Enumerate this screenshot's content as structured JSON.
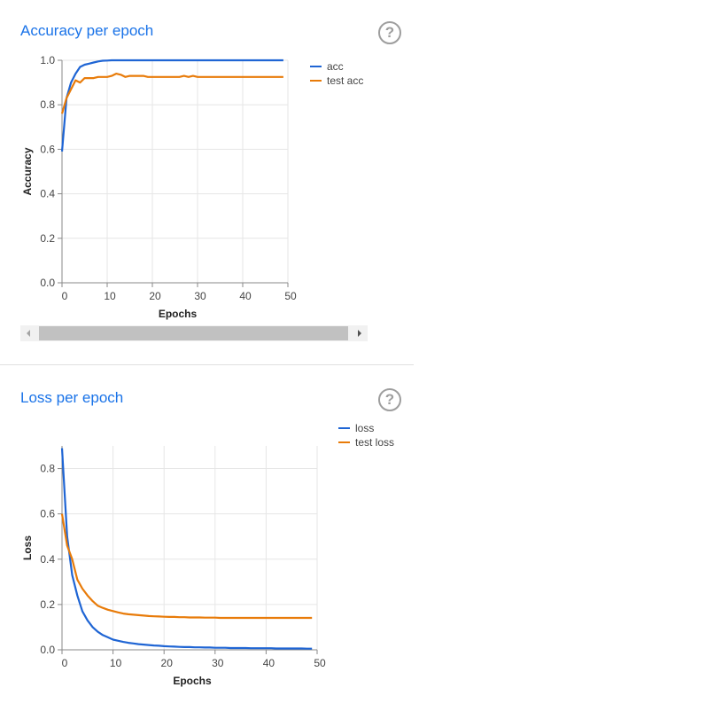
{
  "cards": {
    "accuracy": {
      "title": "Accuracy per epoch",
      "help": "?"
    },
    "loss": {
      "title": "Loss per epoch",
      "help": "?"
    }
  },
  "colors": {
    "series1": "#1f65d4",
    "series2": "#e87b09",
    "title": "#1a73e8",
    "grid": "#e6e6e6",
    "axis": "#888888"
  },
  "chart_data": [
    {
      "type": "line",
      "title": "Accuracy per epoch",
      "xlabel": "Epochs",
      "ylabel": "Accuracy",
      "xlim": [
        0,
        50
      ],
      "ylim": [
        0,
        1
      ],
      "xticks": [
        0,
        10,
        20,
        30,
        40,
        50
      ],
      "xtick_labels": [
        "0",
        "10",
        "20",
        "30",
        "40",
        "50"
      ],
      "yticks": [
        0,
        0.2,
        0.4,
        0.6,
        0.8,
        1.0
      ],
      "ytick_labels": [
        "0.0",
        "0.2",
        "0.4",
        "0.6",
        "0.8",
        "1.0"
      ],
      "grid": true,
      "legend": "top-right",
      "series": [
        {
          "name": "acc",
          "x": [
            0,
            1,
            2,
            3,
            4,
            5,
            6,
            7,
            8,
            9,
            10,
            11,
            12,
            13,
            14,
            15,
            16,
            17,
            18,
            19,
            20,
            21,
            22,
            23,
            24,
            25,
            26,
            27,
            28,
            29,
            30,
            31,
            32,
            33,
            34,
            35,
            36,
            37,
            38,
            39,
            40,
            41,
            42,
            43,
            44,
            45,
            46,
            47,
            48,
            49
          ],
          "y": [
            0.59,
            0.83,
            0.9,
            0.94,
            0.97,
            0.98,
            0.985,
            0.99,
            0.995,
            0.998,
            0.999,
            1.0,
            1.0,
            1.0,
            1.0,
            1.0,
            1.0,
            1.0,
            1.0,
            1.0,
            1.0,
            1.0,
            1.0,
            1.0,
            1.0,
            1.0,
            1.0,
            1.0,
            1.0,
            1.0,
            1.0,
            1.0,
            1.0,
            1.0,
            1.0,
            1.0,
            1.0,
            1.0,
            1.0,
            1.0,
            1.0,
            1.0,
            1.0,
            1.0,
            1.0,
            1.0,
            1.0,
            1.0,
            1.0,
            1.0
          ]
        },
        {
          "name": "test acc",
          "x": [
            0,
            1,
            2,
            3,
            4,
            5,
            6,
            7,
            8,
            9,
            10,
            11,
            12,
            13,
            14,
            15,
            16,
            17,
            18,
            19,
            20,
            21,
            22,
            23,
            24,
            25,
            26,
            27,
            28,
            29,
            30,
            31,
            32,
            33,
            34,
            35,
            36,
            37,
            38,
            39,
            40,
            41,
            42,
            43,
            44,
            45,
            46,
            47,
            48,
            49
          ],
          "y": [
            0.76,
            0.83,
            0.87,
            0.91,
            0.9,
            0.92,
            0.92,
            0.92,
            0.925,
            0.925,
            0.925,
            0.93,
            0.94,
            0.935,
            0.925,
            0.93,
            0.93,
            0.93,
            0.93,
            0.925,
            0.925,
            0.925,
            0.925,
            0.925,
            0.925,
            0.925,
            0.925,
            0.93,
            0.925,
            0.93,
            0.925,
            0.925,
            0.925,
            0.925,
            0.925,
            0.925,
            0.925,
            0.925,
            0.925,
            0.925,
            0.925,
            0.925,
            0.925,
            0.925,
            0.925,
            0.925,
            0.925,
            0.925,
            0.925,
            0.925
          ]
        }
      ]
    },
    {
      "type": "line",
      "title": "Loss per epoch",
      "xlabel": "Epochs",
      "ylabel": "Loss",
      "xlim": [
        0,
        50
      ],
      "ylim": [
        0,
        0.9
      ],
      "xticks": [
        0,
        10,
        20,
        30,
        40,
        50
      ],
      "xtick_labels": [
        "0",
        "10",
        "20",
        "30",
        "40",
        "50"
      ],
      "yticks": [
        0,
        0.2,
        0.4,
        0.6,
        0.8
      ],
      "ytick_labels": [
        "0.0",
        "0.2",
        "0.4",
        "0.6",
        "0.8"
      ],
      "grid": true,
      "legend": "top-right",
      "series": [
        {
          "name": "loss",
          "x": [
            0,
            1,
            2,
            3,
            4,
            5,
            6,
            7,
            8,
            9,
            10,
            11,
            12,
            13,
            14,
            15,
            16,
            17,
            18,
            19,
            20,
            21,
            22,
            23,
            24,
            25,
            26,
            27,
            28,
            29,
            30,
            31,
            32,
            33,
            34,
            35,
            36,
            37,
            38,
            39,
            40,
            41,
            42,
            43,
            44,
            45,
            46,
            47,
            48,
            49
          ],
          "y": [
            0.89,
            0.5,
            0.33,
            0.24,
            0.17,
            0.13,
            0.1,
            0.08,
            0.065,
            0.055,
            0.045,
            0.04,
            0.035,
            0.031,
            0.028,
            0.025,
            0.023,
            0.021,
            0.019,
            0.018,
            0.016,
            0.015,
            0.014,
            0.013,
            0.012,
            0.012,
            0.011,
            0.011,
            0.01,
            0.01,
            0.009,
            0.009,
            0.009,
            0.008,
            0.008,
            0.008,
            0.008,
            0.007,
            0.007,
            0.007,
            0.007,
            0.007,
            0.006,
            0.006,
            0.006,
            0.006,
            0.006,
            0.006,
            0.005,
            0.005
          ]
        },
        {
          "name": "test loss",
          "x": [
            0,
            1,
            2,
            3,
            4,
            5,
            6,
            7,
            8,
            9,
            10,
            11,
            12,
            13,
            14,
            15,
            16,
            17,
            18,
            19,
            20,
            21,
            22,
            23,
            24,
            25,
            26,
            27,
            28,
            29,
            30,
            31,
            32,
            33,
            34,
            35,
            36,
            37,
            38,
            39,
            40,
            41,
            42,
            43,
            44,
            45,
            46,
            47,
            48,
            49
          ],
          "y": [
            0.6,
            0.46,
            0.4,
            0.31,
            0.27,
            0.24,
            0.215,
            0.195,
            0.185,
            0.177,
            0.171,
            0.165,
            0.16,
            0.157,
            0.155,
            0.153,
            0.151,
            0.149,
            0.148,
            0.147,
            0.146,
            0.145,
            0.145,
            0.144,
            0.144,
            0.143,
            0.143,
            0.143,
            0.142,
            0.142,
            0.142,
            0.141,
            0.141,
            0.141,
            0.141,
            0.141,
            0.141,
            0.141,
            0.141,
            0.141,
            0.141,
            0.141,
            0.141,
            0.141,
            0.141,
            0.141,
            0.141,
            0.141,
            0.141,
            0.141
          ]
        }
      ]
    }
  ]
}
